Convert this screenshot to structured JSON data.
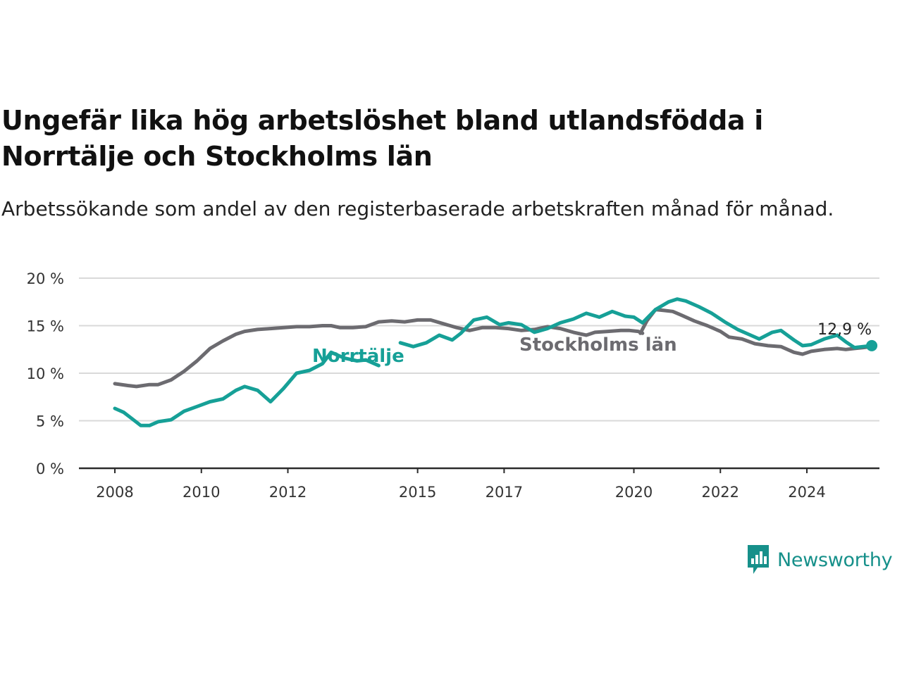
{
  "title": "Ungefär lika hög arbetslöshet bland utlandsfödda i Norrtälje och Stockholms län",
  "subtitle": "Arbetssökande som andel av den registerbaserade arbetskraften månad för månad.",
  "brand": {
    "name": "Newsworthy",
    "logo_icon": "newsworthy-bar-chart-icon",
    "color": "#16908a"
  },
  "colors": {
    "norrtalje": "#16a097",
    "stockholm": "#6c6b70",
    "grid": "#d9d9d9",
    "axis": "#2b2b2b"
  },
  "chart_data": {
    "type": "line",
    "title": "Ungefär lika hög arbetslöshet bland utlandsfödda i Norrtälje och Stockholms län",
    "subtitle": "Arbetssökande som andel av den registerbaserade arbetskraften månad för månad.",
    "xlabel": "",
    "ylabel": "",
    "ylim": [
      0,
      20
    ],
    "xlim": [
      2007.2,
      2025.75
    ],
    "grid": true,
    "legend": "inline labels",
    "y_ticks": [
      {
        "value": 0,
        "label": "0 %"
      },
      {
        "value": 5,
        "label": "5 %"
      },
      {
        "value": 10,
        "label": "10 %"
      },
      {
        "value": 15,
        "label": "15 %"
      },
      {
        "value": 20,
        "label": "20 %"
      }
    ],
    "x_ticks": [
      {
        "value": 2008,
        "label": "2008"
      },
      {
        "value": 2010,
        "label": "2010"
      },
      {
        "value": 2012,
        "label": "2012"
      },
      {
        "value": 2015,
        "label": "2015"
      },
      {
        "value": 2017,
        "label": "2017"
      },
      {
        "value": 2020,
        "label": "2020"
      },
      {
        "value": 2022,
        "label": "2022"
      },
      {
        "value": 2024,
        "label": "2024"
      }
    ],
    "end_label": "12,9 %",
    "series": [
      {
        "name": "Stockholms län",
        "segments": [
          [
            [
              2008.0,
              8.9
            ],
            [
              2008.3,
              8.7
            ],
            [
              2008.5,
              8.6
            ],
            [
              2008.8,
              8.8
            ],
            [
              2009.0,
              8.8
            ],
            [
              2009.3,
              9.3
            ],
            [
              2009.6,
              10.2
            ],
            [
              2009.9,
              11.3
            ],
            [
              2010.2,
              12.6
            ],
            [
              2010.5,
              13.4
            ],
            [
              2010.8,
              14.1
            ],
            [
              2011.0,
              14.4
            ],
            [
              2011.3,
              14.6
            ],
            [
              2011.6,
              14.7
            ],
            [
              2011.9,
              14.8
            ],
            [
              2012.2,
              14.9
            ],
            [
              2012.5,
              14.9
            ],
            [
              2012.8,
              15.0
            ],
            [
              2013.0,
              15.0
            ],
            [
              2013.2,
              14.8
            ],
            [
              2013.5,
              14.8
            ],
            [
              2013.8,
              14.9
            ],
            [
              2014.1,
              15.4
            ],
            [
              2014.4,
              15.5
            ],
            [
              2014.7,
              15.4
            ],
            [
              2015.0,
              15.6
            ],
            [
              2015.3,
              15.6
            ],
            [
              2015.6,
              15.2
            ],
            [
              2015.9,
              14.8
            ],
            [
              2016.2,
              14.5
            ],
            [
              2016.5,
              14.8
            ],
            [
              2016.8,
              14.8
            ],
            [
              2017.1,
              14.7
            ],
            [
              2017.4,
              14.5
            ],
            [
              2017.7,
              14.6
            ],
            [
              2018.0,
              14.9
            ],
            [
              2018.3,
              14.7
            ],
            [
              2018.6,
              14.3
            ],
            [
              2018.9,
              14.0
            ],
            [
              2019.1,
              14.3
            ],
            [
              2019.4,
              14.4
            ],
            [
              2019.7,
              14.5
            ],
            [
              2019.9,
              14.5
            ],
            [
              2020.1,
              14.4
            ],
            [
              2020.2,
              14.2
            ]
          ],
          [
            [
              2020.15,
              14.2
            ],
            [
              2020.3,
              15.5
            ],
            [
              2020.5,
              16.7
            ],
            [
              2020.7,
              16.6
            ],
            [
              2020.9,
              16.5
            ],
            [
              2021.1,
              16.1
            ],
            [
              2021.4,
              15.5
            ],
            [
              2021.7,
              15.0
            ],
            [
              2022.0,
              14.4
            ],
            [
              2022.2,
              13.8
            ],
            [
              2022.5,
              13.6
            ],
            [
              2022.8,
              13.1
            ],
            [
              2023.1,
              12.9
            ],
            [
              2023.4,
              12.8
            ],
            [
              2023.7,
              12.2
            ],
            [
              2023.9,
              12.0
            ],
            [
              2024.1,
              12.3
            ],
            [
              2024.4,
              12.5
            ],
            [
              2024.7,
              12.6
            ],
            [
              2024.9,
              12.5
            ],
            [
              2025.1,
              12.6
            ],
            [
              2025.3,
              12.7
            ],
            [
              2025.5,
              12.8
            ]
          ]
        ]
      },
      {
        "name": "Norrtälje",
        "segments": [
          [
            [
              2008.0,
              6.3
            ],
            [
              2008.2,
              5.9
            ],
            [
              2008.4,
              5.2
            ],
            [
              2008.6,
              4.5
            ],
            [
              2008.8,
              4.5
            ],
            [
              2009.0,
              4.9
            ],
            [
              2009.3,
              5.1
            ],
            [
              2009.6,
              6.0
            ],
            [
              2009.9,
              6.5
            ],
            [
              2010.2,
              7.0
            ],
            [
              2010.5,
              7.3
            ],
            [
              2010.8,
              8.2
            ],
            [
              2011.0,
              8.6
            ],
            [
              2011.3,
              8.2
            ],
            [
              2011.6,
              7.0
            ],
            [
              2011.9,
              8.4
            ],
            [
              2012.2,
              10.0
            ],
            [
              2012.5,
              10.3
            ],
            [
              2012.8,
              11.0
            ],
            [
              2013.0,
              12.2
            ],
            [
              2013.3,
              11.6
            ],
            [
              2013.6,
              11.3
            ],
            [
              2013.8,
              11.4
            ],
            [
              2014.1,
              10.8
            ]
          ],
          [
            [
              2014.6,
              13.2
            ],
            [
              2014.9,
              12.8
            ],
            [
              2015.2,
              13.2
            ],
            [
              2015.5,
              14.0
            ],
            [
              2015.8,
              13.5
            ],
            [
              2016.0,
              14.2
            ],
            [
              2016.3,
              15.6
            ],
            [
              2016.6,
              15.9
            ],
            [
              2016.9,
              15.1
            ],
            [
              2017.1,
              15.3
            ],
            [
              2017.4,
              15.1
            ],
            [
              2017.7,
              14.3
            ],
            [
              2018.0,
              14.7
            ],
            [
              2018.3,
              15.3
            ],
            [
              2018.6,
              15.7
            ],
            [
              2018.9,
              16.3
            ],
            [
              2019.2,
              15.9
            ],
            [
              2019.5,
              16.5
            ],
            [
              2019.8,
              16.0
            ],
            [
              2020.0,
              15.9
            ],
            [
              2020.2,
              15.3
            ],
            [
              2020.5,
              16.7
            ],
            [
              2020.8,
              17.5
            ],
            [
              2021.0,
              17.8
            ],
            [
              2021.2,
              17.6
            ],
            [
              2021.5,
              17.0
            ],
            [
              2021.8,
              16.3
            ],
            [
              2022.1,
              15.4
            ],
            [
              2022.4,
              14.6
            ],
            [
              2022.7,
              14.0
            ],
            [
              2022.9,
              13.6
            ],
            [
              2023.2,
              14.3
            ],
            [
              2023.4,
              14.5
            ],
            [
              2023.7,
              13.5
            ],
            [
              2023.9,
              12.9
            ],
            [
              2024.1,
              13.0
            ],
            [
              2024.4,
              13.6
            ],
            [
              2024.7,
              14.0
            ],
            [
              2024.9,
              13.3
            ],
            [
              2025.1,
              12.7
            ],
            [
              2025.3,
              12.8
            ],
            [
              2025.5,
              12.9
            ]
          ]
        ]
      }
    ]
  }
}
